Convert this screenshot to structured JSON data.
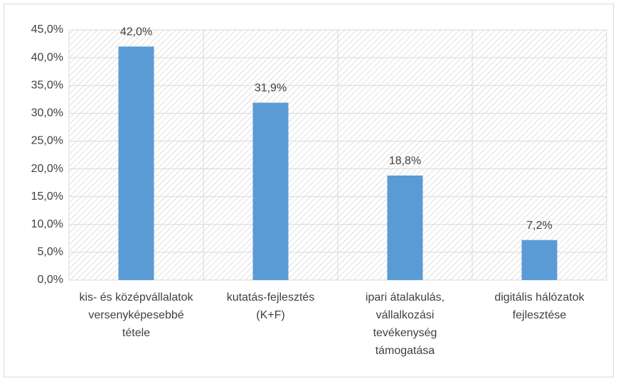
{
  "chart_data": {
    "type": "bar",
    "categories": [
      "kis- és középvállalatok versenyképesebbé tétele",
      "kutatás-fejlesztés (K+F)",
      "ipari átalakulás, vállalkozási tevékenység támogatása",
      "digitális hálózatok fejlesztése"
    ],
    "values": [
      42.0,
      31.9,
      18.8,
      7.2
    ],
    "value_labels": [
      "42,0%",
      "31,9%",
      "18,8%",
      "7,2%"
    ],
    "color": "#5b9bd5",
    "ylim": [
      0,
      45
    ],
    "yticks": [
      {
        "value": 0,
        "label": "0,0%"
      },
      {
        "value": 5,
        "label": "5,0%"
      },
      {
        "value": 10,
        "label": "10,0%"
      },
      {
        "value": 15,
        "label": "15,0%"
      },
      {
        "value": 20,
        "label": "20,0%"
      },
      {
        "value": 25,
        "label": "25,0%"
      },
      {
        "value": 30,
        "label": "30,0%"
      },
      {
        "value": 35,
        "label": "35,0%"
      },
      {
        "value": 40,
        "label": "40,0%"
      },
      {
        "value": 45,
        "label": "45,0%"
      }
    ],
    "grid": true
  }
}
